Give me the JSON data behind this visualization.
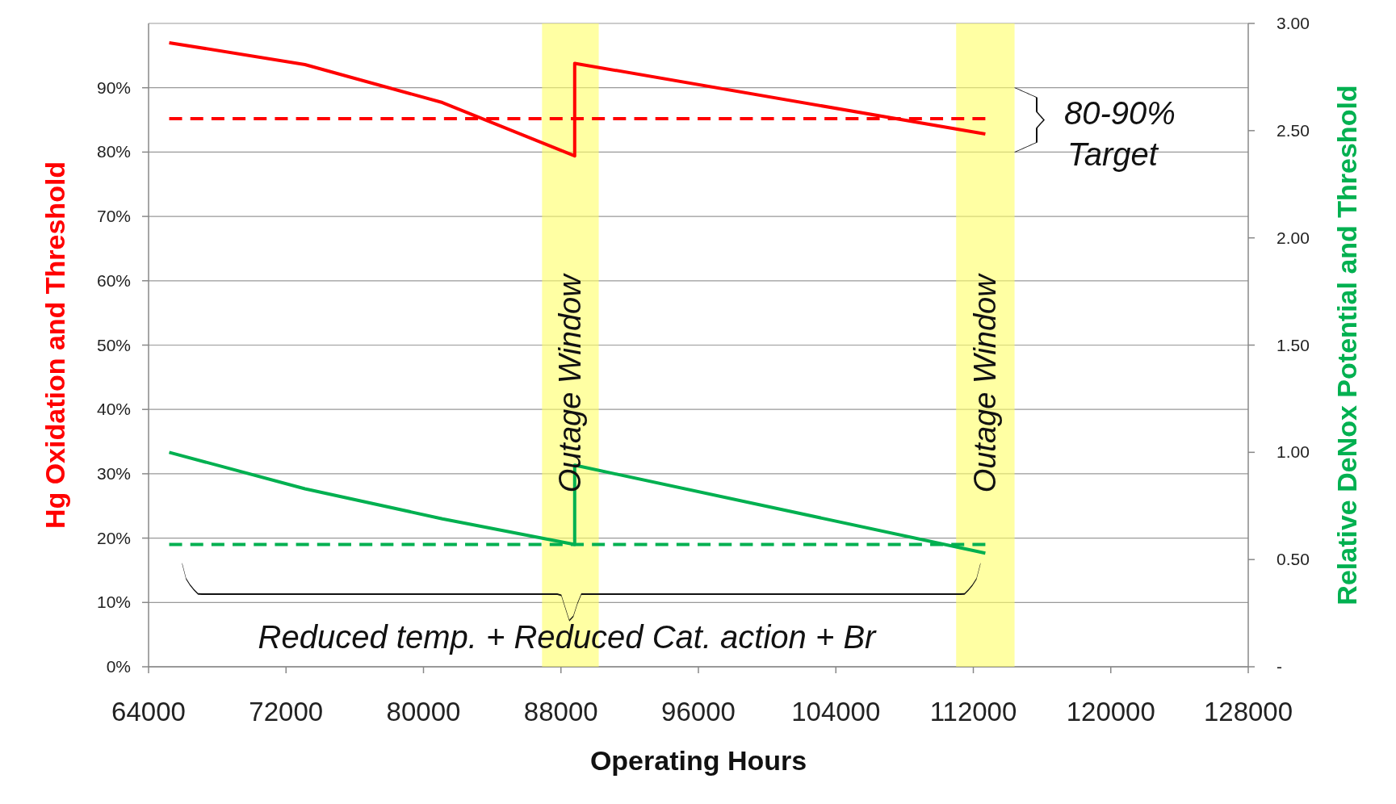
{
  "chart_data": {
    "type": "line",
    "xlabel": "Operating Hours",
    "ylabel": "Hg Oxidation and Threshold",
    "y2label": "Relative DeNox Potential and Threshold",
    "xlim": [
      64000,
      128000
    ],
    "xticks": [
      64000,
      72000,
      80000,
      88000,
      96000,
      104000,
      112000,
      120000,
      128000
    ],
    "ylim": [
      0,
      1
    ],
    "yticks": [
      {
        "value": 0,
        "label": "0%"
      },
      {
        "value": 0.1,
        "label": "10%"
      },
      {
        "value": 0.2,
        "label": "20%"
      },
      {
        "value": 0.3,
        "label": "30%"
      },
      {
        "value": 0.4,
        "label": "40%"
      },
      {
        "value": 0.5,
        "label": "50%"
      },
      {
        "value": 0.6,
        "label": "60%"
      },
      {
        "value": 0.7,
        "label": "70%"
      },
      {
        "value": 0.8,
        "label": "80%"
      },
      {
        "value": 0.9,
        "label": "90%"
      }
    ],
    "y2lim": [
      0,
      3
    ],
    "y2ticks": [
      {
        "value": 0,
        "label": "-"
      },
      {
        "value": 0.5,
        "label": "0.50"
      },
      {
        "value": 1,
        "label": "1.00"
      },
      {
        "value": 1.5,
        "label": "1.50"
      },
      {
        "value": 2,
        "label": "2.00"
      },
      {
        "value": 2.5,
        "label": "2.50"
      },
      {
        "value": 3,
        "label": "3.00"
      }
    ],
    "grid": "y",
    "series": [
      {
        "color": "#ff0000",
        "x": [
          65200,
          73100,
          81100,
          88800,
          88800,
          112700
        ],
        "values": [
          0.97,
          0.936,
          0.877,
          0.794,
          0.938,
          0.828
        ]
      },
      {
        "color": "#ff0000",
        "line_style": "dashed",
        "x": [
          65200,
          112700
        ],
        "values": [
          0.852,
          0.852
        ]
      },
      {
        "color": "#00b050",
        "axis": "y2",
        "x": [
          65200,
          73100,
          81100,
          88800,
          88800,
          112700
        ],
        "values": [
          1.0,
          0.83,
          0.69,
          0.57,
          0.94,
          0.53
        ]
      },
      {
        "color": "#00b050",
        "axis": "y2",
        "line_style": "dashed",
        "x": [
          65200,
          112700
        ],
        "values": [
          0.57,
          0.57
        ]
      }
    ],
    "bands": [
      {
        "axis": "x",
        "from": 86900,
        "to": 90200,
        "label": "Outage Window",
        "color": "#ffff66"
      },
      {
        "axis": "x",
        "from": 111000,
        "to": 114400,
        "label": "Outage Window",
        "color": "#ffff66"
      }
    ],
    "annotations": [
      "80-90% Target",
      "Reduced temp. + Reduced Cat. action + Br"
    ]
  }
}
